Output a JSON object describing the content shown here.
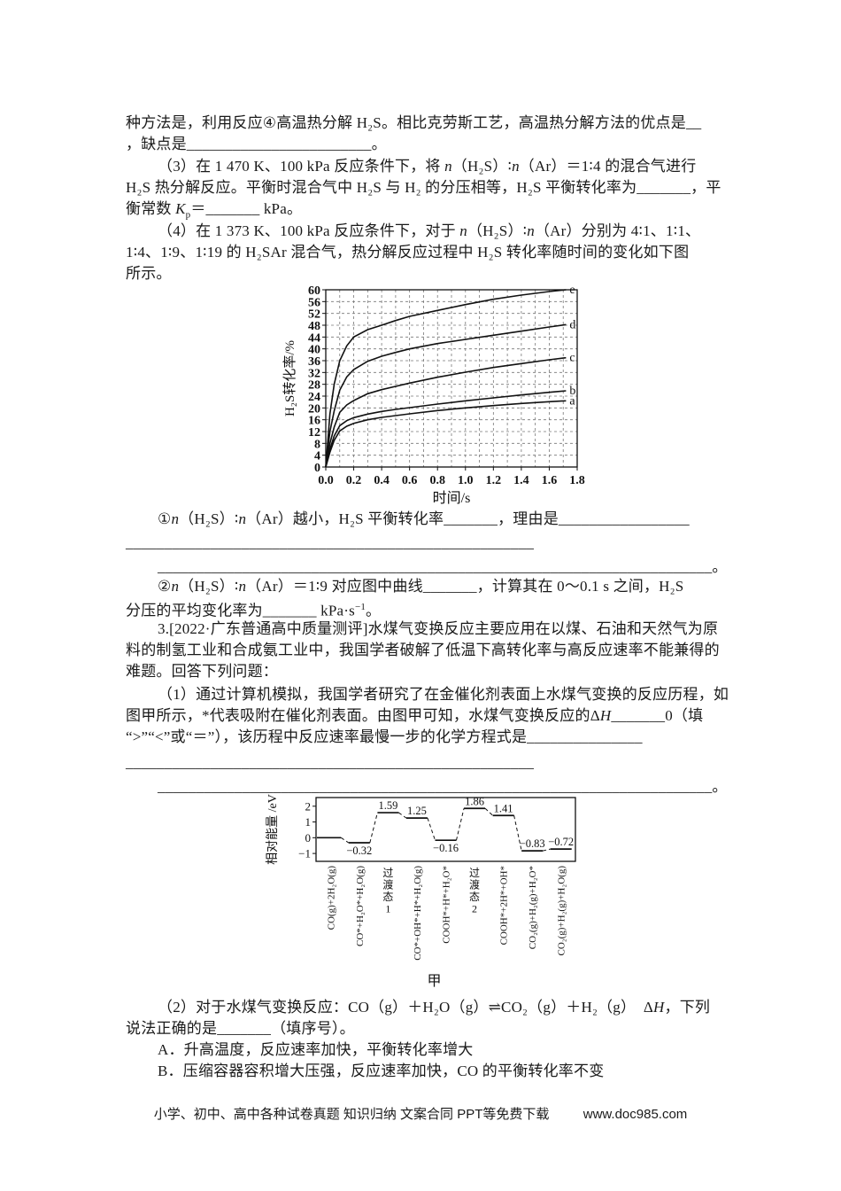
{
  "lines": [
    [
      "种方法是，利用反应④高温热分解 H₂S。相比克劳斯工艺，高温热分解方法的优点是__"
    ],
    [
      "，缺点是________________________。"
    ],
    [
      "（3）在 1 470 K、100 kPa 反应条件下，将 ",
      {
        "t": "n",
        "s": "i"
      },
      "（H₂S）∶",
      {
        "t": "n",
        "s": "i"
      },
      "（Ar）＝1∶4 的混合气进行"
    ],
    [
      "H₂S 热分解反应。平衡时混合气中 H₂S 与 H₂ 的分压相等，H₂S 平衡转化率为_______，平"
    ],
    [
      "衡常数 ",
      {
        "t": "K",
        "s": "i"
      },
      {
        "t": "p",
        "s": "sub"
      },
      "＝_______ kPa。"
    ],
    [
      "（4）在 1 373 K、100 kPa 反应条件下，对于 ",
      {
        "t": "n",
        "s": "i"
      },
      "（H₂S）∶",
      {
        "t": "n",
        "s": "i"
      },
      "（Ar）分别为 4∶1、1∶1、"
    ],
    [
      "1∶4、1∶9、1∶19 的 H₂SAr 混合气，热分解反应过程中 H₂S 转化率随时间的变化如下图"
    ],
    [
      "所示。"
    ],
    [
      "①",
      {
        "t": "n",
        "s": "i"
      },
      "（H₂S）∶",
      {
        "t": "n",
        "s": "i"
      },
      "（Ar）越小，H₂S 平衡转化率_______，理由是_________________"
    ],
    [
      "_____________________________________________________"
    ],
    [
      "________________________________________________________________________。"
    ],
    [
      "②",
      {
        "t": "n",
        "s": "i"
      },
      "（H₂S）∶",
      {
        "t": "n",
        "s": "i"
      },
      "（Ar）＝1∶9 对应图中曲线_______，计算其在 0～0.1 s 之间，H₂S"
    ],
    [
      "分压的平均变化率为_______ kPa·s",
      {
        "t": "−1",
        "s": "sup"
      },
      "。"
    ],
    [
      "3.[2022·",
      {
        "t": "广东",
        "s": "bs"
      },
      "普通高中",
      {
        "t": "质量测评",
        "s": "bs"
      },
      "]水煤气变换反应主要应用在以煤、石油和天然气为原"
    ],
    [
      "料的制氢工业和合成氨工业中，我国学者破解了低温下高转化率与高反应速率不能兼得的"
    ],
    [
      "难题。回答下列问题："
    ],
    [
      "（1）通过计算机模拟，我国学者研究了在金催化剂表面上水煤气变换的反应历程，如"
    ],
    [
      "图甲所示，*代表吸附在催化剂表面。由图甲可知，水煤气变换反应的Δ",
      {
        "t": "H",
        "s": "i"
      },
      "_______0（填"
    ],
    [
      "“>”“<”或“＝”），该历程中反应速率最慢一步的化学方程式是_______________"
    ],
    [
      "_____________________________________________________"
    ],
    [
      "________________________________________________________________________。"
    ],
    [
      "（2）对于水煤气变换反应：CO（g）＋H₂O（g）⇌CO₂（g）＋H₂（g）　Δ",
      {
        "t": "H",
        "s": "i"
      },
      "，下列"
    ],
    [
      "说法正确的是_______（填序号）。"
    ],
    [
      "A．升高温度，反应速率加快，平衡转化率增大"
    ],
    [
      "B．压缩容器容积增大压强，反应速率加快，CO 的平衡转化率不变"
    ]
  ],
  "chart_data": [
    {
      "type": "line",
      "title": "",
      "xlabel": "时间/s",
      "ylabel": "H₂S转化率/%",
      "xlim": [
        0,
        1.8
      ],
      "ylim": [
        0,
        60
      ],
      "xticks": [
        "0.0",
        "0.2",
        "0.4",
        "0.6",
        "0.8",
        "1.0",
        "1.2",
        "1.4",
        "1.6",
        "1.8"
      ],
      "yticks": [
        0,
        4,
        8,
        12,
        16,
        20,
        24,
        28,
        32,
        36,
        40,
        44,
        48,
        52,
        56,
        60
      ],
      "grid": {
        "x_step": 0.1,
        "y_step": 4,
        "style": "dashed"
      },
      "legend_position": "curve-end-labels",
      "series": [
        {
          "name": "a",
          "points": [
            [
              0,
              0
            ],
            [
              0.03,
              5
            ],
            [
              0.06,
              9
            ],
            [
              0.1,
              12.2
            ],
            [
              0.15,
              13.8
            ],
            [
              0.2,
              14.8
            ],
            [
              0.3,
              16
            ],
            [
              0.4,
              16.8
            ],
            [
              0.5,
              17.4
            ],
            [
              0.6,
              18
            ],
            [
              0.8,
              19.1
            ],
            [
              1.0,
              20
            ],
            [
              1.2,
              20.8
            ],
            [
              1.4,
              21.5
            ],
            [
              1.6,
              22.1
            ],
            [
              1.72,
              22.4
            ]
          ]
        },
        {
          "name": "b",
          "points": [
            [
              0,
              0
            ],
            [
              0.03,
              6
            ],
            [
              0.06,
              10.5
            ],
            [
              0.1,
              14
            ],
            [
              0.15,
              15.7
            ],
            [
              0.2,
              16.7
            ],
            [
              0.3,
              17.9
            ],
            [
              0.4,
              18.8
            ],
            [
              0.5,
              19.5
            ],
            [
              0.6,
              20.1
            ],
            [
              0.8,
              21.3
            ],
            [
              1.0,
              22.4
            ],
            [
              1.2,
              23.4
            ],
            [
              1.4,
              24.4
            ],
            [
              1.6,
              25.3
            ],
            [
              1.72,
              25.8
            ]
          ]
        },
        {
          "name": "c",
          "points": [
            [
              0,
              0
            ],
            [
              0.03,
              8
            ],
            [
              0.06,
              13.5
            ],
            [
              0.1,
              18.5
            ],
            [
              0.15,
              21
            ],
            [
              0.2,
              22.5
            ],
            [
              0.3,
              24.8
            ],
            [
              0.4,
              26.2
            ],
            [
              0.5,
              27.3
            ],
            [
              0.6,
              28.4
            ],
            [
              0.8,
              30.4
            ],
            [
              1.0,
              32.1
            ],
            [
              1.2,
              33.7
            ],
            [
              1.4,
              35
            ],
            [
              1.6,
              36.3
            ],
            [
              1.72,
              37
            ]
          ]
        },
        {
          "name": "d",
          "points": [
            [
              0,
              0
            ],
            [
              0.03,
              12
            ],
            [
              0.06,
              19
            ],
            [
              0.1,
              26
            ],
            [
              0.15,
              30.5
            ],
            [
              0.2,
              33
            ],
            [
              0.3,
              35.8
            ],
            [
              0.4,
              37.5
            ],
            [
              0.5,
              38.8
            ],
            [
              0.6,
              40
            ],
            [
              0.8,
              41.8
            ],
            [
              1.0,
              43.2
            ],
            [
              1.2,
              44.6
            ],
            [
              1.4,
              46
            ],
            [
              1.6,
              47.4
            ],
            [
              1.72,
              48.2
            ]
          ]
        },
        {
          "name": "e",
          "points": [
            [
              0,
              0
            ],
            [
              0.03,
              18
            ],
            [
              0.06,
              28
            ],
            [
              0.1,
              36
            ],
            [
              0.15,
              41
            ],
            [
              0.2,
              44
            ],
            [
              0.3,
              46.5
            ],
            [
              0.4,
              48
            ],
            [
              0.5,
              49.6
            ],
            [
              0.6,
              51
            ],
            [
              0.8,
              53
            ],
            [
              1.0,
              55
            ],
            [
              1.2,
              56.8
            ],
            [
              1.4,
              58.2
            ],
            [
              1.6,
              59.4
            ],
            [
              1.72,
              60
            ]
          ]
        }
      ]
    },
    {
      "type": "energy-profile",
      "ylabel": "相对能量 /eV",
      "ylim": [
        -1.5,
        2.55
      ],
      "yticks": [
        2,
        1,
        0,
        -1
      ],
      "caption": "甲",
      "states": [
        {
          "label": "CO(g)+2H₂O(g)",
          "energy": 0,
          "value_label": "",
          "label_pos": ""
        },
        {
          "label": "CO*+H₂O*+H₂O(g)",
          "energy": -0.32,
          "value_label": "−0.32",
          "label_pos": "below"
        },
        {
          "label": "过渡态1",
          "energy": 1.59,
          "value_label": "1.59",
          "label_pos": "above",
          "upright": true,
          "chars": [
            "过",
            "渡",
            "态",
            "1"
          ]
        },
        {
          "label": "CO*+OH*+H*+H₂O(g)",
          "energy": 1.25,
          "value_label": "1.25",
          "label_pos": "above"
        },
        {
          "label": "COOH*+H*+H₂O*",
          "energy": -0.16,
          "value_label": "−0.16",
          "label_pos": "below"
        },
        {
          "label": "过渡态2",
          "energy": 1.86,
          "value_label": "1.86",
          "label_pos": "above",
          "upright": true,
          "chars": [
            "过",
            "渡",
            "态",
            "2"
          ]
        },
        {
          "label": "COOH*+2H*+OH*",
          "energy": 1.41,
          "value_label": "1.41",
          "label_pos": "above"
        },
        {
          "label": "CO₂(g)+H₂(g)+H₂O*",
          "energy": -0.83,
          "value_label": "−0.83",
          "label_pos": "above"
        },
        {
          "label": "CO₂(g)+H₂(g)+H₂O(g)",
          "energy": -0.72,
          "value_label": "−0.72",
          "label_pos": "above"
        }
      ]
    }
  ],
  "footer": {
    "left": "小学、初中、高中各种试卷真题 知识归纳 文案合同 PPT等免费下载",
    "right": "www.doc985.com"
  }
}
